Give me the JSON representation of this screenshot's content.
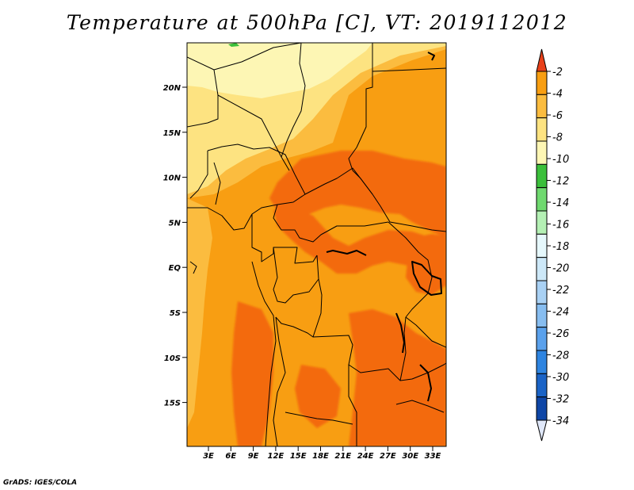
{
  "title": "Temperature at 500hPa [C], VT: 2019112012",
  "credit": "GrADS: IGES/COLA",
  "map": {
    "y_labels": [
      "20N",
      "15N",
      "10N",
      "5N",
      "EQ",
      "5S",
      "10S",
      "15S"
    ],
    "x_labels": [
      "3E",
      "6E",
      "9E",
      "12E",
      "15E",
      "18E",
      "21E",
      "24E",
      "27E",
      "30E",
      "33E"
    ],
    "field_colors": {
      "-2_-4": "#f36a0f",
      "-4_-6": "#f89e12",
      "-6_-8": "#fbbc3f",
      "-8_-10": "#fde381",
      "-10_-12": "#fdf6b4"
    }
  },
  "colorbar": {
    "labels": [
      "-2",
      "-4",
      "-6",
      "-8",
      "-10",
      "-12",
      "-14",
      "-16",
      "-18",
      "-20",
      "-22",
      "-24",
      "-26",
      "-28",
      "-30",
      "-32",
      "-34"
    ],
    "colors": [
      "#f36a0f",
      "#f89e12",
      "#fbbc3f",
      "#fde381",
      "#fdf6b4",
      "#3bbf3b",
      "#6fd96f",
      "#b4f0b4",
      "#e6f8fc",
      "#cde8f8",
      "#a9d1f4",
      "#87bdf0",
      "#5aa1ec",
      "#2e84e0",
      "#1a63c6",
      "#0e46a6",
      "#0a1a7a"
    ],
    "top_arrow_color": "#e8401a",
    "bottom_arrow_color": "#e0e8fa"
  }
}
